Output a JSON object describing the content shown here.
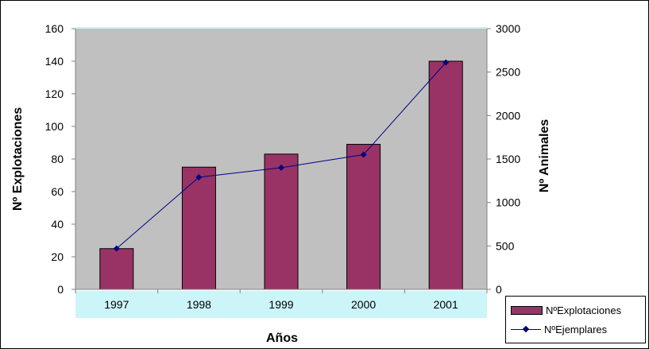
{
  "chart_data": {
    "type": "bar+line",
    "categories": [
      "1997",
      "1998",
      "1999",
      "2000",
      "2001"
    ],
    "xlabel": "Años",
    "ylabel_left": "Nº Explotaciones",
    "ylabel_right": "Nº Animales",
    "ylim_left": [
      0,
      160
    ],
    "ylim_right": [
      0,
      3000
    ],
    "yticks_left": [
      "0",
      "20",
      "40",
      "60",
      "80",
      "100",
      "120",
      "140",
      "160"
    ],
    "yticks_right": [
      "0",
      "500",
      "1000",
      "1500",
      "2000",
      "2500",
      "3000"
    ],
    "plot_background": "#c0c0c0",
    "tick_label_background": "#ccf5f9",
    "legend_position": "bottom-right",
    "series": [
      {
        "name": "NºExplotaciones",
        "type": "bar",
        "axis": "left",
        "color": "#993366",
        "values": [
          25,
          75,
          83,
          89,
          140
        ]
      },
      {
        "name": "NºEjemplares",
        "type": "line",
        "axis": "right",
        "color": "#000080",
        "marker": "diamond",
        "values": [
          470,
          1290,
          1400,
          1550,
          2610
        ]
      }
    ]
  }
}
